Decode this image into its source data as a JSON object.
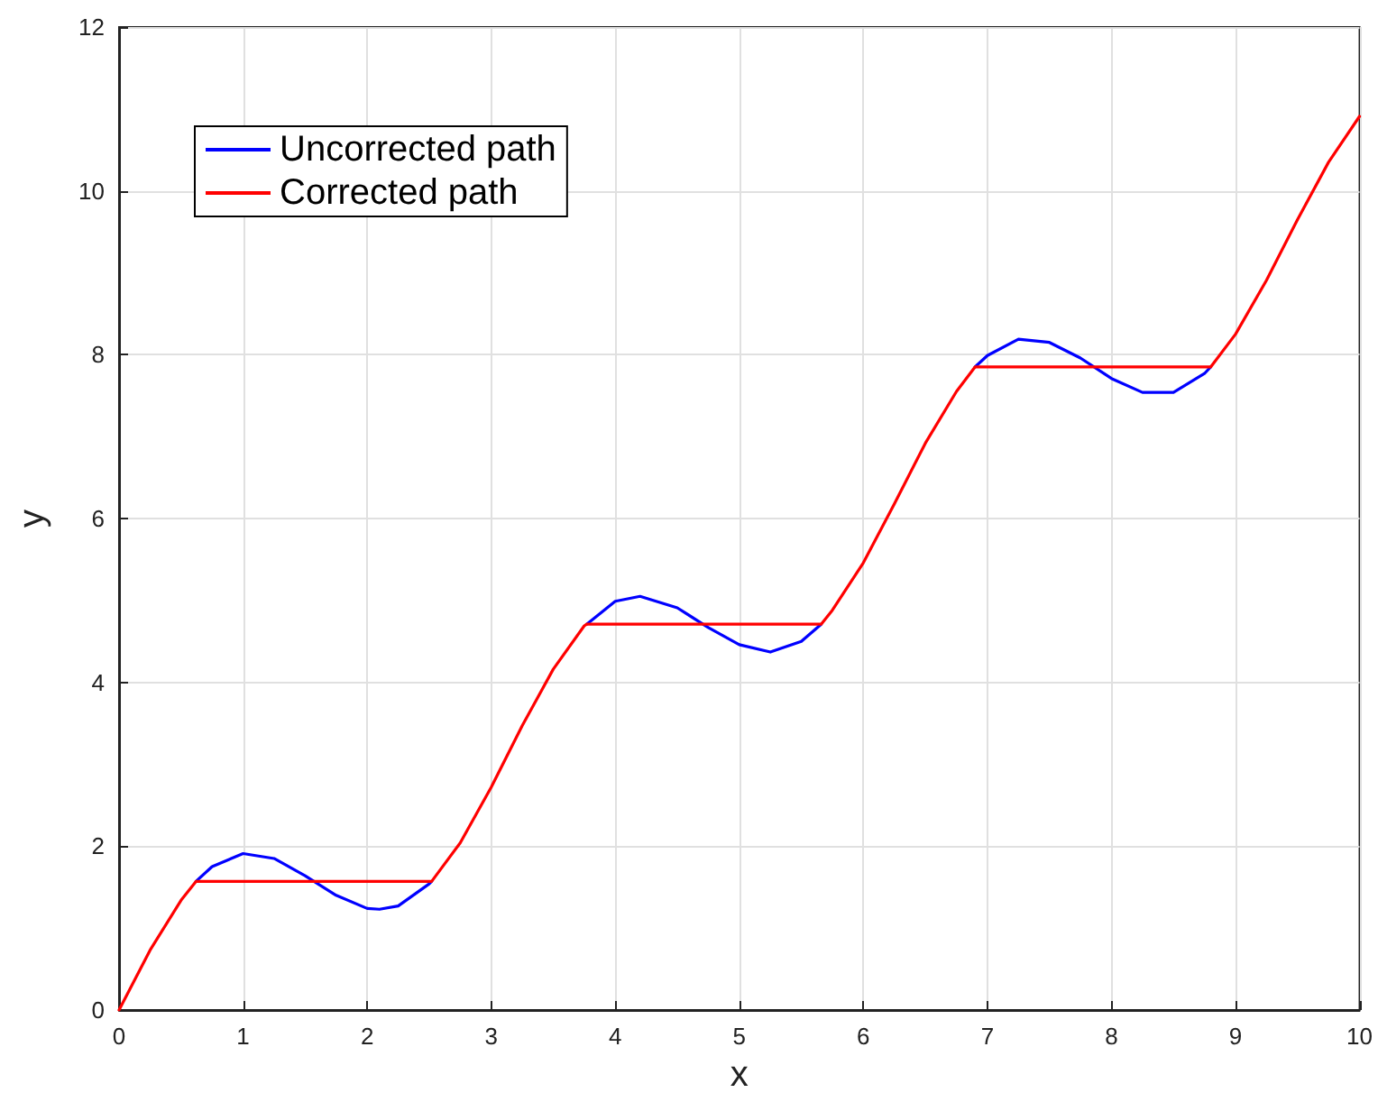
{
  "chart_data": {
    "type": "line",
    "xlabel": "x",
    "ylabel": "y",
    "xlim": [
      0,
      10
    ],
    "ylim": [
      0,
      12
    ],
    "xticks": [
      0,
      1,
      2,
      3,
      4,
      5,
      6,
      7,
      8,
      9,
      10
    ],
    "yticks": [
      0,
      2,
      4,
      6,
      8,
      10,
      12
    ],
    "grid": true,
    "legend": "top left",
    "marker": "none",
    "line_style": "solid",
    "series": [
      {
        "name": "Uncorrected path",
        "color": "#0000ff",
        "x": [
          0.62,
          0.75,
          1,
          1.25,
          1.5,
          1.75,
          2,
          2.1,
          2.25,
          2.5,
          2.52,
          3,
          3.77,
          4,
          4.2,
          4.5,
          4.75,
          5,
          5.25,
          5.5,
          5.66,
          6,
          6.9,
          7,
          7.25,
          7.5,
          7.75,
          8,
          8.25,
          8.5,
          8.75,
          8.8
        ],
        "values": [
          1.57,
          1.75,
          1.91,
          1.85,
          1.64,
          1.4,
          1.24,
          1.23,
          1.27,
          1.54,
          1.57,
          null,
          4.71,
          4.99,
          5.05,
          4.91,
          4.67,
          4.46,
          4.37,
          4.5,
          4.71,
          null,
          7.85,
          7.99,
          8.19,
          8.15,
          7.96,
          7.71,
          7.54,
          7.54,
          7.77,
          7.85
        ]
      },
      {
        "name": "Corrected path",
        "color": "#ff0000",
        "x": [
          0,
          0.25,
          0.5,
          0.62,
          2.52,
          2.75,
          3,
          3.25,
          3.5,
          3.75,
          3.77,
          5.66,
          5.75,
          6,
          6.25,
          6.5,
          6.75,
          6.9,
          8.8,
          9,
          9.25,
          9.5,
          9.75,
          10
        ],
        "values": [
          0,
          0.73,
          1.34,
          1.57,
          1.57,
          2.04,
          2.72,
          3.47,
          4.16,
          4.69,
          4.71,
          4.71,
          4.88,
          5.46,
          6.18,
          6.92,
          7.55,
          7.85,
          7.85,
          8.25,
          8.91,
          9.65,
          10.35,
          10.91
        ]
      }
    ]
  }
}
